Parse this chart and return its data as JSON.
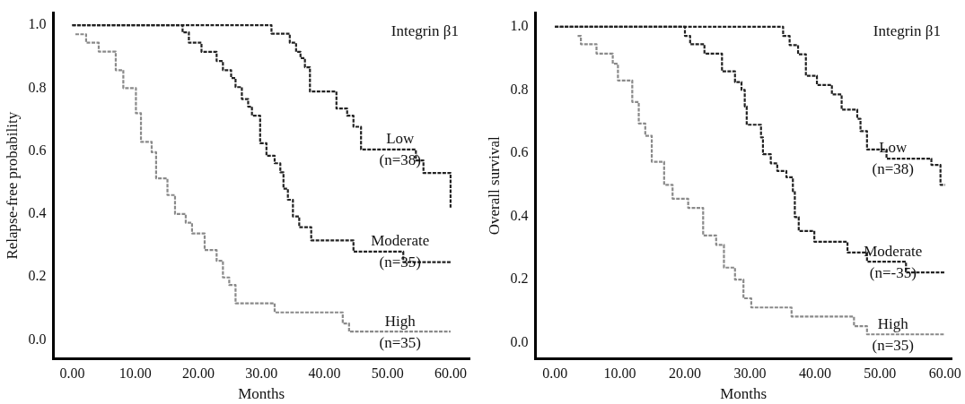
{
  "chart_data": [
    {
      "type": "step",
      "xlabel": "Months",
      "ylabel": "Relapse-free probability",
      "xlim": [
        -3,
        63
      ],
      "ylim": [
        -0.06,
        1.04
      ],
      "xticks": [
        {
          "value": 0,
          "label": "0.00"
        },
        {
          "value": 10,
          "label": "10.00"
        },
        {
          "value": 20,
          "label": "20.00"
        },
        {
          "value": 30,
          "label": "30.00"
        },
        {
          "value": 40,
          "label": "40.00"
        },
        {
          "value": 50,
          "label": "50.00"
        },
        {
          "value": 60,
          "label": "60.00"
        }
      ],
      "yticks": [
        {
          "value": 0,
          "label": "0.0"
        },
        {
          "value": 0.2,
          "label": "0.2"
        },
        {
          "value": 0.4,
          "label": "0.4"
        },
        {
          "value": 0.6,
          "label": "0.6"
        },
        {
          "value": 0.8,
          "label": "0.8"
        },
        {
          "value": 1,
          "label": "1.0"
        }
      ],
      "grid": false,
      "legend": false,
      "marker": "none",
      "line_style": "dashed",
      "series": [
        {
          "name": "Low (n=38)",
          "color": "#222222",
          "x": [
            0,
            31.6,
            34.5,
            35.5,
            36.2,
            36.9,
            37.7,
            41.9,
            43.6,
            44.6,
            45.8,
            54.5,
            55.7,
            60,
            60
          ],
          "values": [
            1,
            0.973,
            0.944,
            0.915,
            0.895,
            0.866,
            0.789,
            0.735,
            0.712,
            0.677,
            0.605,
            0.57,
            0.53,
            0.42,
            0.42
          ]
        },
        {
          "name": "Moderate (n=35)",
          "color": "#222222",
          "x": [
            0,
            17.5,
            18.5,
            20.5,
            22.9,
            23.9,
            25.2,
            25.9,
            26.9,
            27.9,
            28.5,
            29.8,
            30.8,
            32.1,
            33.0,
            33.5,
            34.2,
            35.0,
            36.0,
            37.9,
            44.6,
            52.5,
            60
          ],
          "values": [
            1,
            0.977,
            0.944,
            0.915,
            0.886,
            0.857,
            0.832,
            0.803,
            0.765,
            0.741,
            0.712,
            0.625,
            0.585,
            0.561,
            0.532,
            0.48,
            0.445,
            0.392,
            0.358,
            0.316,
            0.28,
            0.247,
            0.247
          ]
        },
        {
          "name": "High (n=35)",
          "color": "#8a8a8a",
          "x": [
            0.5,
            2.2,
            4.2,
            6.9,
            8.1,
            10.1,
            10.9,
            12.6,
            13.3,
            15.1,
            16.3,
            18.0,
            19.0,
            21.0,
            22.9,
            23.9,
            24.9,
            25.9,
            32.1,
            42.9,
            43.9,
            60
          ],
          "values": [
            0.971,
            0.944,
            0.916,
            0.857,
            0.8,
            0.72,
            0.629,
            0.596,
            0.513,
            0.46,
            0.4,
            0.372,
            0.338,
            0.285,
            0.251,
            0.198,
            0.174,
            0.116,
            0.087,
            0.052,
            0.026,
            0.026
          ]
        }
      ],
      "annotations": [
        "Integrin β1"
      ]
    },
    {
      "type": "step",
      "xlabel": "Months",
      "ylabel": "Overall survival",
      "xlim": [
        -3,
        61
      ],
      "ylim": [
        -0.05,
        1.045
      ],
      "xticks": [
        {
          "value": 0,
          "label": "0.00"
        },
        {
          "value": 10,
          "label": "10.00"
        },
        {
          "value": 20,
          "label": "20.00"
        },
        {
          "value": 30,
          "label": "30.00"
        },
        {
          "value": 40,
          "label": "40.00"
        },
        {
          "value": 50,
          "label": "50.00"
        },
        {
          "value": 60,
          "label": "60.00"
        }
      ],
      "yticks": [
        {
          "value": 0,
          "label": "0.0"
        },
        {
          "value": 0.2,
          "label": "0.2"
        },
        {
          "value": 0.4,
          "label": "0.4"
        },
        {
          "value": 0.6,
          "label": "0.6"
        },
        {
          "value": 0.8,
          "label": "0.8"
        },
        {
          "value": 1,
          "label": "1.0"
        }
      ],
      "grid": false,
      "legend": false,
      "marker": "none",
      "line_style": "dashed",
      "series": [
        {
          "name": "Low (n=38)",
          "color": "#222222",
          "x": [
            0,
            35.1,
            36.1,
            37.4,
            38.6,
            40.3,
            42.6,
            44.1,
            46.5,
            47.0,
            48.0,
            51.0,
            57.9,
            59.3,
            60
          ],
          "values": [
            1,
            0.971,
            0.942,
            0.913,
            0.845,
            0.816,
            0.786,
            0.738,
            0.709,
            0.67,
            0.612,
            0.583,
            0.563,
            0.5,
            0.5
          ]
        },
        {
          "name": "Moderate (n=-35)",
          "color": "#222222",
          "x": [
            0,
            20.0,
            20.8,
            23.0,
            25.7,
            27.7,
            28.7,
            29.2,
            29.5,
            31.7,
            32.0,
            33.2,
            34.2,
            35.6,
            36.6,
            36.9,
            37.5,
            39.9,
            45.0,
            48.0,
            54.0,
            60
          ],
          "values": [
            1,
            0.971,
            0.945,
            0.915,
            0.859,
            0.825,
            0.8,
            0.748,
            0.69,
            0.65,
            0.597,
            0.568,
            0.544,
            0.524,
            0.48,
            0.398,
            0.354,
            0.32,
            0.286,
            0.257,
            0.223,
            0.223
          ]
        },
        {
          "name": "High (n=35)",
          "color": "#8a8a8a",
          "x": [
            3.5,
            4.0,
            6.4,
            8.9,
            9.7,
            11.9,
            12.9,
            13.9,
            14.9,
            16.8,
            18.1,
            20.5,
            22.8,
            24.8,
            26.0,
            27.7,
            29.0,
            30.2,
            36.4,
            46.0,
            48.0,
            60
          ],
          "values": [
            0.971,
            0.945,
            0.915,
            0.883,
            0.83,
            0.762,
            0.694,
            0.655,
            0.573,
            0.5,
            0.456,
            0.427,
            0.34,
            0.31,
            0.238,
            0.2,
            0.141,
            0.112,
            0.083,
            0.053,
            0.027,
            0.027
          ]
        }
      ],
      "annotations": [
        "Integrin β1"
      ]
    }
  ]
}
